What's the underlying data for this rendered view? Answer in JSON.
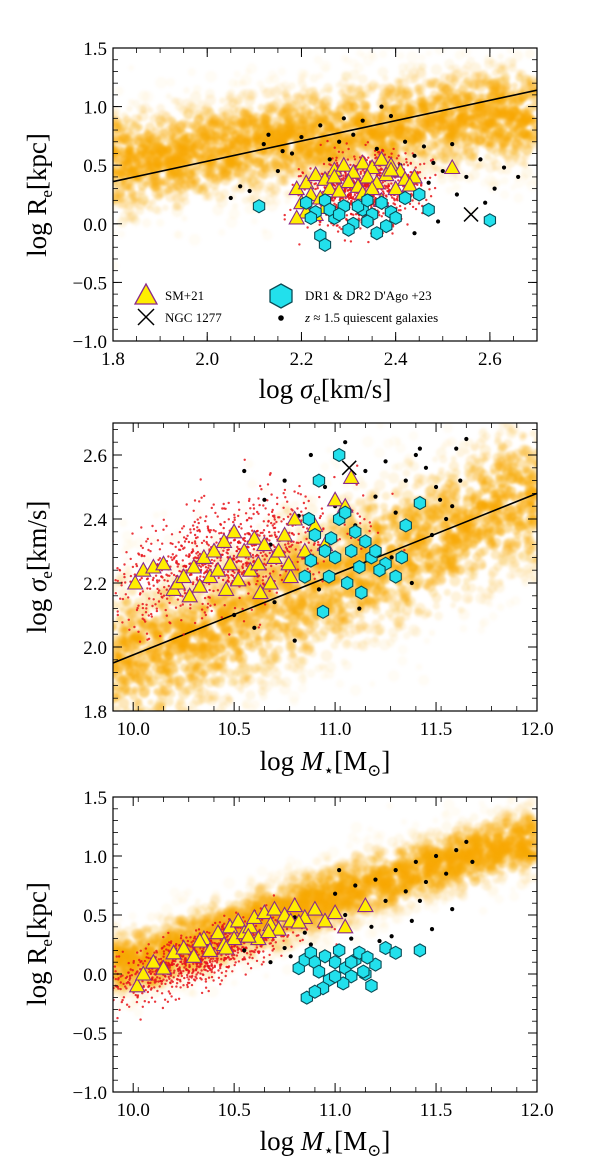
{
  "colors": {
    "density_cloud": "#f7a800",
    "red_points": "#e8141b",
    "sm21_fill": "#ffee00",
    "sm21_edge": "#8a2b8a",
    "dago_fill": "#22e0ec",
    "dago_edge": "#0a4b55",
    "black": "#000000"
  },
  "legend": {
    "sm21": "SM+21",
    "ngc1277": "NGC 1277",
    "dago": "DR1 & DR2 D'Ago +23",
    "z15": "z ≈ 1.5 quiescent galaxies"
  },
  "chart_data": [
    {
      "type": "scatter",
      "panel": "top",
      "xlabel": "log σe[km/s]",
      "ylabel": "log Re[kpc]",
      "xlim": [
        1.8,
        2.7
      ],
      "ylim": [
        -1.0,
        1.5
      ],
      "xticks": [
        "1.8",
        "2.0",
        "2.2",
        "2.4",
        "2.6"
      ],
      "xtick_values": [
        1.8,
        2.0,
        2.2,
        2.4,
        2.6
      ],
      "yticks": [
        "−1.0",
        "−0.5",
        "0.0",
        "0.5",
        "1.0",
        "1.5"
      ],
      "ytick_values": [
        -1.0,
        -0.5,
        0.0,
        0.5,
        1.0,
        1.5
      ],
      "legend_position": "lower-left",
      "relation_line": {
        "x": [
          1.8,
          2.7
        ],
        "y": [
          0.36,
          1.14
        ]
      },
      "density_cloud": {
        "ridge": [
          [
            1.85,
            0.52
          ],
          [
            2.0,
            0.62
          ],
          [
            2.2,
            0.72
          ],
          [
            2.4,
            0.82
          ],
          [
            2.6,
            0.92
          ]
        ],
        "spread": [
          0.07,
          0.22
        ]
      },
      "series": [
        {
          "name": "SM+21",
          "marker": "triangle",
          "x": [
            2.19,
            2.21,
            2.23,
            2.25,
            2.27,
            2.29,
            2.31,
            2.33,
            2.35,
            2.37,
            2.39,
            2.41,
            2.22,
            2.26,
            2.3,
            2.34,
            2.38,
            2.42,
            2.2,
            2.24,
            2.28,
            2.32,
            2.36,
            2.4,
            2.44,
            2.52,
            2.21,
            2.25,
            2.33,
            2.37,
            2.43,
            2.19,
            2.23,
            2.27,
            2.35,
            2.39
          ],
          "y": [
            0.3,
            0.35,
            0.42,
            0.38,
            0.46,
            0.5,
            0.44,
            0.52,
            0.48,
            0.55,
            0.5,
            0.45,
            0.25,
            0.3,
            0.36,
            0.4,
            0.42,
            0.38,
            0.18,
            0.22,
            0.28,
            0.32,
            0.35,
            0.3,
            0.4,
            0.48,
            0.1,
            0.14,
            0.26,
            0.2,
            0.33,
            0.05,
            0.08,
            0.4,
            0.3,
            0.46
          ]
        },
        {
          "name": "DR1 & DR2 D'Ago +23",
          "marker": "hexagon",
          "x": [
            2.11,
            2.21,
            2.23,
            2.25,
            2.27,
            2.29,
            2.31,
            2.33,
            2.35,
            2.37,
            2.39,
            2.22,
            2.26,
            2.3,
            2.34,
            2.38,
            2.24,
            2.28,
            2.32,
            2.36,
            2.4,
            2.45,
            2.47,
            2.6,
            2.25,
            2.34,
            2.42
          ],
          "y": [
            0.15,
            0.18,
            0.1,
            0.2,
            0.05,
            0.15,
            0.0,
            0.12,
            0.08,
            0.18,
            0.1,
            0.05,
            0.12,
            -0.05,
            0.02,
            -0.02,
            -0.1,
            0.08,
            0.15,
            -0.08,
            0.05,
            0.25,
            0.12,
            0.03,
            -0.18,
            0.2,
            0.22
          ]
        },
        {
          "name": "NGC 1277",
          "marker": "cross",
          "x": [
            2.56
          ],
          "y": [
            0.08
          ]
        },
        {
          "name": "z ≈ 1.5 quiescent galaxies",
          "marker": "dot",
          "x": [
            2.07,
            2.09,
            2.13,
            2.16,
            2.18,
            2.24,
            2.28,
            2.31,
            2.36,
            2.39,
            2.42,
            2.44,
            2.46,
            2.48,
            2.5,
            2.52,
            2.55,
            2.58,
            2.61,
            2.63,
            2.66,
            2.05,
            2.15,
            2.26,
            2.33,
            2.41,
            2.47,
            2.53,
            2.59,
            2.44,
            2.49,
            2.12,
            2.2,
            2.37,
            2.29
          ],
          "y": [
            0.32,
            0.28,
            0.76,
            0.62,
            0.6,
            0.84,
            0.7,
            0.76,
            0.64,
            0.92,
            0.7,
            0.58,
            0.66,
            0.52,
            0.45,
            0.68,
            0.4,
            0.55,
            0.3,
            0.48,
            0.4,
            0.22,
            0.45,
            0.55,
            0.88,
            0.5,
            0.35,
            0.25,
            0.18,
            -0.08,
            0.02,
            0.68,
            0.74,
            1.0,
            0.9
          ]
        },
        {
          "name": "",
          "marker": "small-red-dot",
          "center": [
            2.33,
            0.28
          ],
          "spread": [
            0.06,
            0.15
          ]
        }
      ]
    },
    {
      "type": "scatter",
      "panel": "middle",
      "xlabel": "log M⋆[M⊙]",
      "ylabel": "log σe[km/s]",
      "xlim": [
        9.9,
        12.0
      ],
      "ylim": [
        1.8,
        2.7
      ],
      "xticks": [
        "10.0",
        "10.5",
        "11.0",
        "11.5",
        "12.0"
      ],
      "xtick_values": [
        10.0,
        10.5,
        11.0,
        11.5,
        12.0
      ],
      "yticks": [
        "1.8",
        "2.0",
        "2.2",
        "2.4",
        "2.6"
      ],
      "ytick_values": [
        1.8,
        2.0,
        2.2,
        2.4,
        2.6
      ],
      "relation_line": {
        "x": [
          9.9,
          12.0
        ],
        "y": [
          1.95,
          2.48
        ]
      },
      "density_cloud": {
        "ridge": [
          [
            10.0,
            1.96
          ],
          [
            10.5,
            2.08
          ],
          [
            11.0,
            2.22
          ],
          [
            11.5,
            2.34
          ],
          [
            11.9,
            2.46
          ]
        ],
        "spread": [
          0.2,
          0.12
        ]
      },
      "series": [
        {
          "name": "SM+21",
          "marker": "triangle",
          "x": [
            10.01,
            10.05,
            10.1,
            10.15,
            10.2,
            10.22,
            10.25,
            10.3,
            10.33,
            10.35,
            10.38,
            10.4,
            10.42,
            10.45,
            10.48,
            10.5,
            10.52,
            10.55,
            10.58,
            10.6,
            10.62,
            10.65,
            10.68,
            10.7,
            10.72,
            10.75,
            10.78,
            10.8,
            10.85,
            10.9,
            10.95,
            11.0,
            11.05,
            11.08,
            10.28,
            10.46,
            10.63,
            10.77
          ],
          "y": [
            2.2,
            2.24,
            2.25,
            2.26,
            2.18,
            2.2,
            2.22,
            2.25,
            2.19,
            2.28,
            2.22,
            2.3,
            2.24,
            2.33,
            2.26,
            2.36,
            2.21,
            2.3,
            2.24,
            2.34,
            2.26,
            2.32,
            2.2,
            2.28,
            2.3,
            2.35,
            2.22,
            2.4,
            2.3,
            2.38,
            2.32,
            2.46,
            2.44,
            2.53,
            2.16,
            2.18,
            2.17,
            2.26
          ]
        },
        {
          "name": "DR1 & DR2 D'Ago +23",
          "marker": "hexagon",
          "x": [
            10.85,
            10.88,
            10.9,
            10.92,
            10.95,
            10.97,
            11.0,
            11.02,
            11.05,
            11.08,
            11.1,
            11.12,
            11.15,
            11.18,
            11.2,
            11.25,
            11.3,
            11.35,
            11.42,
            11.02,
            10.94,
            11.06,
            10.98,
            11.13,
            10.87,
            11.33,
            11.22
          ],
          "y": [
            2.22,
            2.27,
            2.35,
            2.52,
            2.3,
            2.22,
            2.28,
            2.4,
            2.42,
            2.3,
            2.36,
            2.25,
            2.33,
            2.28,
            2.3,
            2.26,
            2.22,
            2.38,
            2.45,
            2.6,
            2.11,
            2.2,
            2.34,
            2.17,
            2.4,
            2.28,
            2.24
          ]
        },
        {
          "name": "NGC 1277",
          "marker": "cross",
          "x": [
            11.07
          ],
          "y": [
            2.56
          ]
        },
        {
          "name": "z ≈ 1.5 quiescent galaxies",
          "marker": "dot",
          "x": [
            10.55,
            10.65,
            10.75,
            10.82,
            10.88,
            10.95,
            11.0,
            11.05,
            11.1,
            11.15,
            11.2,
            11.25,
            11.3,
            11.35,
            11.4,
            11.45,
            11.5,
            11.55,
            11.6,
            11.65,
            10.5,
            10.6,
            10.7,
            10.8,
            11.18,
            11.28,
            11.38,
            11.48,
            11.58,
            11.62,
            10.92,
            11.12,
            11.42,
            10.68,
            11.52
          ],
          "y": [
            2.55,
            2.46,
            2.52,
            2.41,
            2.6,
            2.5,
            2.44,
            2.64,
            2.38,
            2.55,
            2.47,
            2.58,
            2.42,
            2.52,
            2.6,
            2.56,
            2.5,
            2.4,
            2.62,
            2.65,
            2.1,
            2.06,
            2.14,
            2.02,
            2.3,
            2.28,
            2.2,
            2.35,
            2.44,
            2.52,
            2.18,
            2.12,
            2.62,
            2.32,
            2.46
          ]
        },
        {
          "name": "",
          "marker": "small-red-dot",
          "center": [
            10.45,
            2.28
          ],
          "spread": [
            0.28,
            0.08
          ]
        }
      ]
    },
    {
      "type": "scatter",
      "panel": "bottom",
      "xlabel": "log M⋆[M⊙]",
      "ylabel": "log Re[kpc]",
      "xlim": [
        9.9,
        12.0
      ],
      "ylim": [
        -1.0,
        1.5
      ],
      "xticks": [
        "10.0",
        "10.5",
        "11.0",
        "11.5",
        "12.0"
      ],
      "xtick_values": [
        10.0,
        10.5,
        11.0,
        11.5,
        12.0
      ],
      "yticks": [
        "−1.0",
        "−0.5",
        "0.0",
        "0.5",
        "1.0",
        "1.5"
      ],
      "ytick_values": [
        -1.0,
        -0.5,
        0.0,
        0.5,
        1.0,
        1.5
      ],
      "density_cloud": {
        "ridge": [
          [
            10.0,
            0.1
          ],
          [
            10.5,
            0.38
          ],
          [
            11.0,
            0.66
          ],
          [
            11.5,
            0.92
          ],
          [
            11.9,
            1.12
          ]
        ],
        "spread": [
          0.2,
          0.14
        ]
      },
      "series": [
        {
          "name": "SM+21",
          "marker": "triangle",
          "x": [
            10.02,
            10.05,
            10.1,
            10.15,
            10.2,
            10.25,
            10.3,
            10.35,
            10.38,
            10.42,
            10.45,
            10.48,
            10.5,
            10.52,
            10.55,
            10.58,
            10.6,
            10.62,
            10.65,
            10.68,
            10.7,
            10.72,
            10.75,
            10.78,
            10.8,
            10.85,
            10.9,
            10.95,
            11.0,
            11.05,
            11.15,
            10.33,
            10.46,
            10.57,
            10.67,
            10.82
          ],
          "y": [
            -0.1,
            0.0,
            0.1,
            0.05,
            0.18,
            0.22,
            0.15,
            0.3,
            0.2,
            0.35,
            0.25,
            0.4,
            0.3,
            0.45,
            0.35,
            0.4,
            0.48,
            0.3,
            0.52,
            0.42,
            0.55,
            0.38,
            0.5,
            0.45,
            0.58,
            0.48,
            0.55,
            0.45,
            0.52,
            0.4,
            0.58,
            0.28,
            0.22,
            0.32,
            0.36,
            0.44
          ]
        },
        {
          "name": "DR1 & DR2 D'Ago +23",
          "marker": "hexagon",
          "x": [
            10.82,
            10.85,
            10.88,
            10.9,
            10.92,
            10.95,
            10.97,
            11.0,
            11.02,
            11.05,
            11.08,
            11.1,
            11.12,
            11.15,
            11.18,
            11.2,
            11.25,
            11.3,
            10.94,
            11.04,
            11.14,
            10.86,
            11.42,
            11.16,
            10.9,
            11.0,
            11.08
          ],
          "y": [
            0.05,
            0.12,
            0.18,
            0.1,
            0.02,
            0.15,
            -0.05,
            0.1,
            0.2,
            0.05,
            -0.02,
            0.12,
            0.18,
            0.0,
            -0.1,
            0.08,
            0.22,
            0.18,
            -0.12,
            -0.08,
            0.02,
            -0.2,
            0.2,
            0.14,
            -0.15,
            -0.02,
            0.1
          ]
        },
        {
          "name": "z ≈ 1.5 quiescent galaxies",
          "marker": "dot",
          "x": [
            10.55,
            10.62,
            10.7,
            10.75,
            10.8,
            10.85,
            10.9,
            10.95,
            11.0,
            11.05,
            11.1,
            11.15,
            11.2,
            11.25,
            11.3,
            11.35,
            11.4,
            11.45,
            11.5,
            11.55,
            11.6,
            11.65,
            11.68,
            10.68,
            10.78,
            10.88,
            11.08,
            11.18,
            11.28,
            11.38,
            11.48,
            11.58,
            11.02,
            11.22,
            11.42
          ],
          "y": [
            0.2,
            0.3,
            0.38,
            0.22,
            0.48,
            0.35,
            0.55,
            0.42,
            0.68,
            0.5,
            0.75,
            0.58,
            0.8,
            0.62,
            0.88,
            0.7,
            0.95,
            0.78,
            1.0,
            0.85,
            1.05,
            1.12,
            0.95,
            0.1,
            0.15,
            0.25,
            0.3,
            0.4,
            0.32,
            0.45,
            0.38,
            0.55,
            0.88,
            0.28,
            0.62
          ]
        },
        {
          "name": "",
          "marker": "small-red-dot",
          "center": [
            10.3,
            0.12
          ],
          "spread": [
            0.25,
            0.12
          ]
        }
      ]
    }
  ]
}
